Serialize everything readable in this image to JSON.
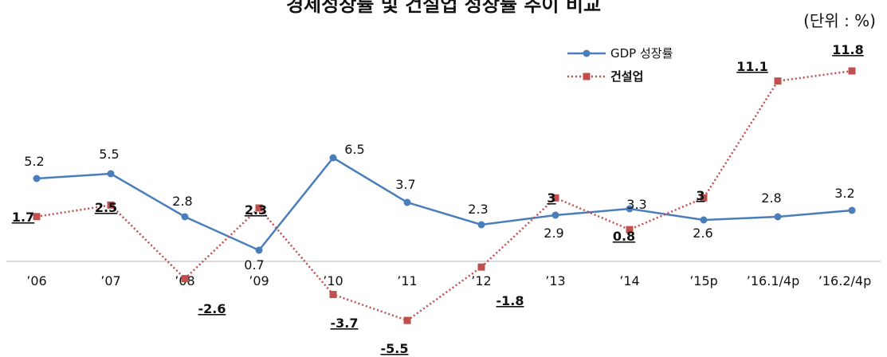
{
  "title": "경제성장률 및 건설업 성장률 추이 비교",
  "unit": "(단위 : %)",
  "chart_data": {
    "type": "line",
    "categories": [
      "’06",
      "’07",
      "’08",
      "’09",
      "’10",
      "’11",
      "’12",
      "’13",
      "’14",
      "’15p",
      "’16.1/4p",
      "’16.2/4p"
    ],
    "series": [
      {
        "name": "GDP 성장률",
        "color": "#4a7ebb",
        "marker": "circle",
        "line_style": "solid",
        "values": [
          5.2,
          5.5,
          2.8,
          0.7,
          6.5,
          3.7,
          2.3,
          2.9,
          3.3,
          2.6,
          2.8,
          3.2
        ],
        "labels": [
          "5.2",
          "5.5",
          "2.8",
          "0.7",
          "6.5",
          "3.7",
          "2.3",
          "2.9",
          "3.3",
          "2.6",
          "2.8",
          "3.2"
        ]
      },
      {
        "name": "건설업",
        "color": "#c0504d",
        "marker": "square",
        "line_style": "dotted",
        "values": [
          1.7,
          2.5,
          -2.6,
          2.3,
          -3.7,
          -5.5,
          -1.8,
          3,
          0.8,
          3,
          11.1,
          11.8
        ],
        "labels": [
          "1.7",
          "2.5",
          "-2.6",
          "2.3",
          "-3.7",
          "-5.5",
          "-1.8",
          "3",
          "0.8",
          "3",
          "11.1",
          "11.8"
        ]
      }
    ],
    "legend_position": "top-right",
    "grid": false
  }
}
